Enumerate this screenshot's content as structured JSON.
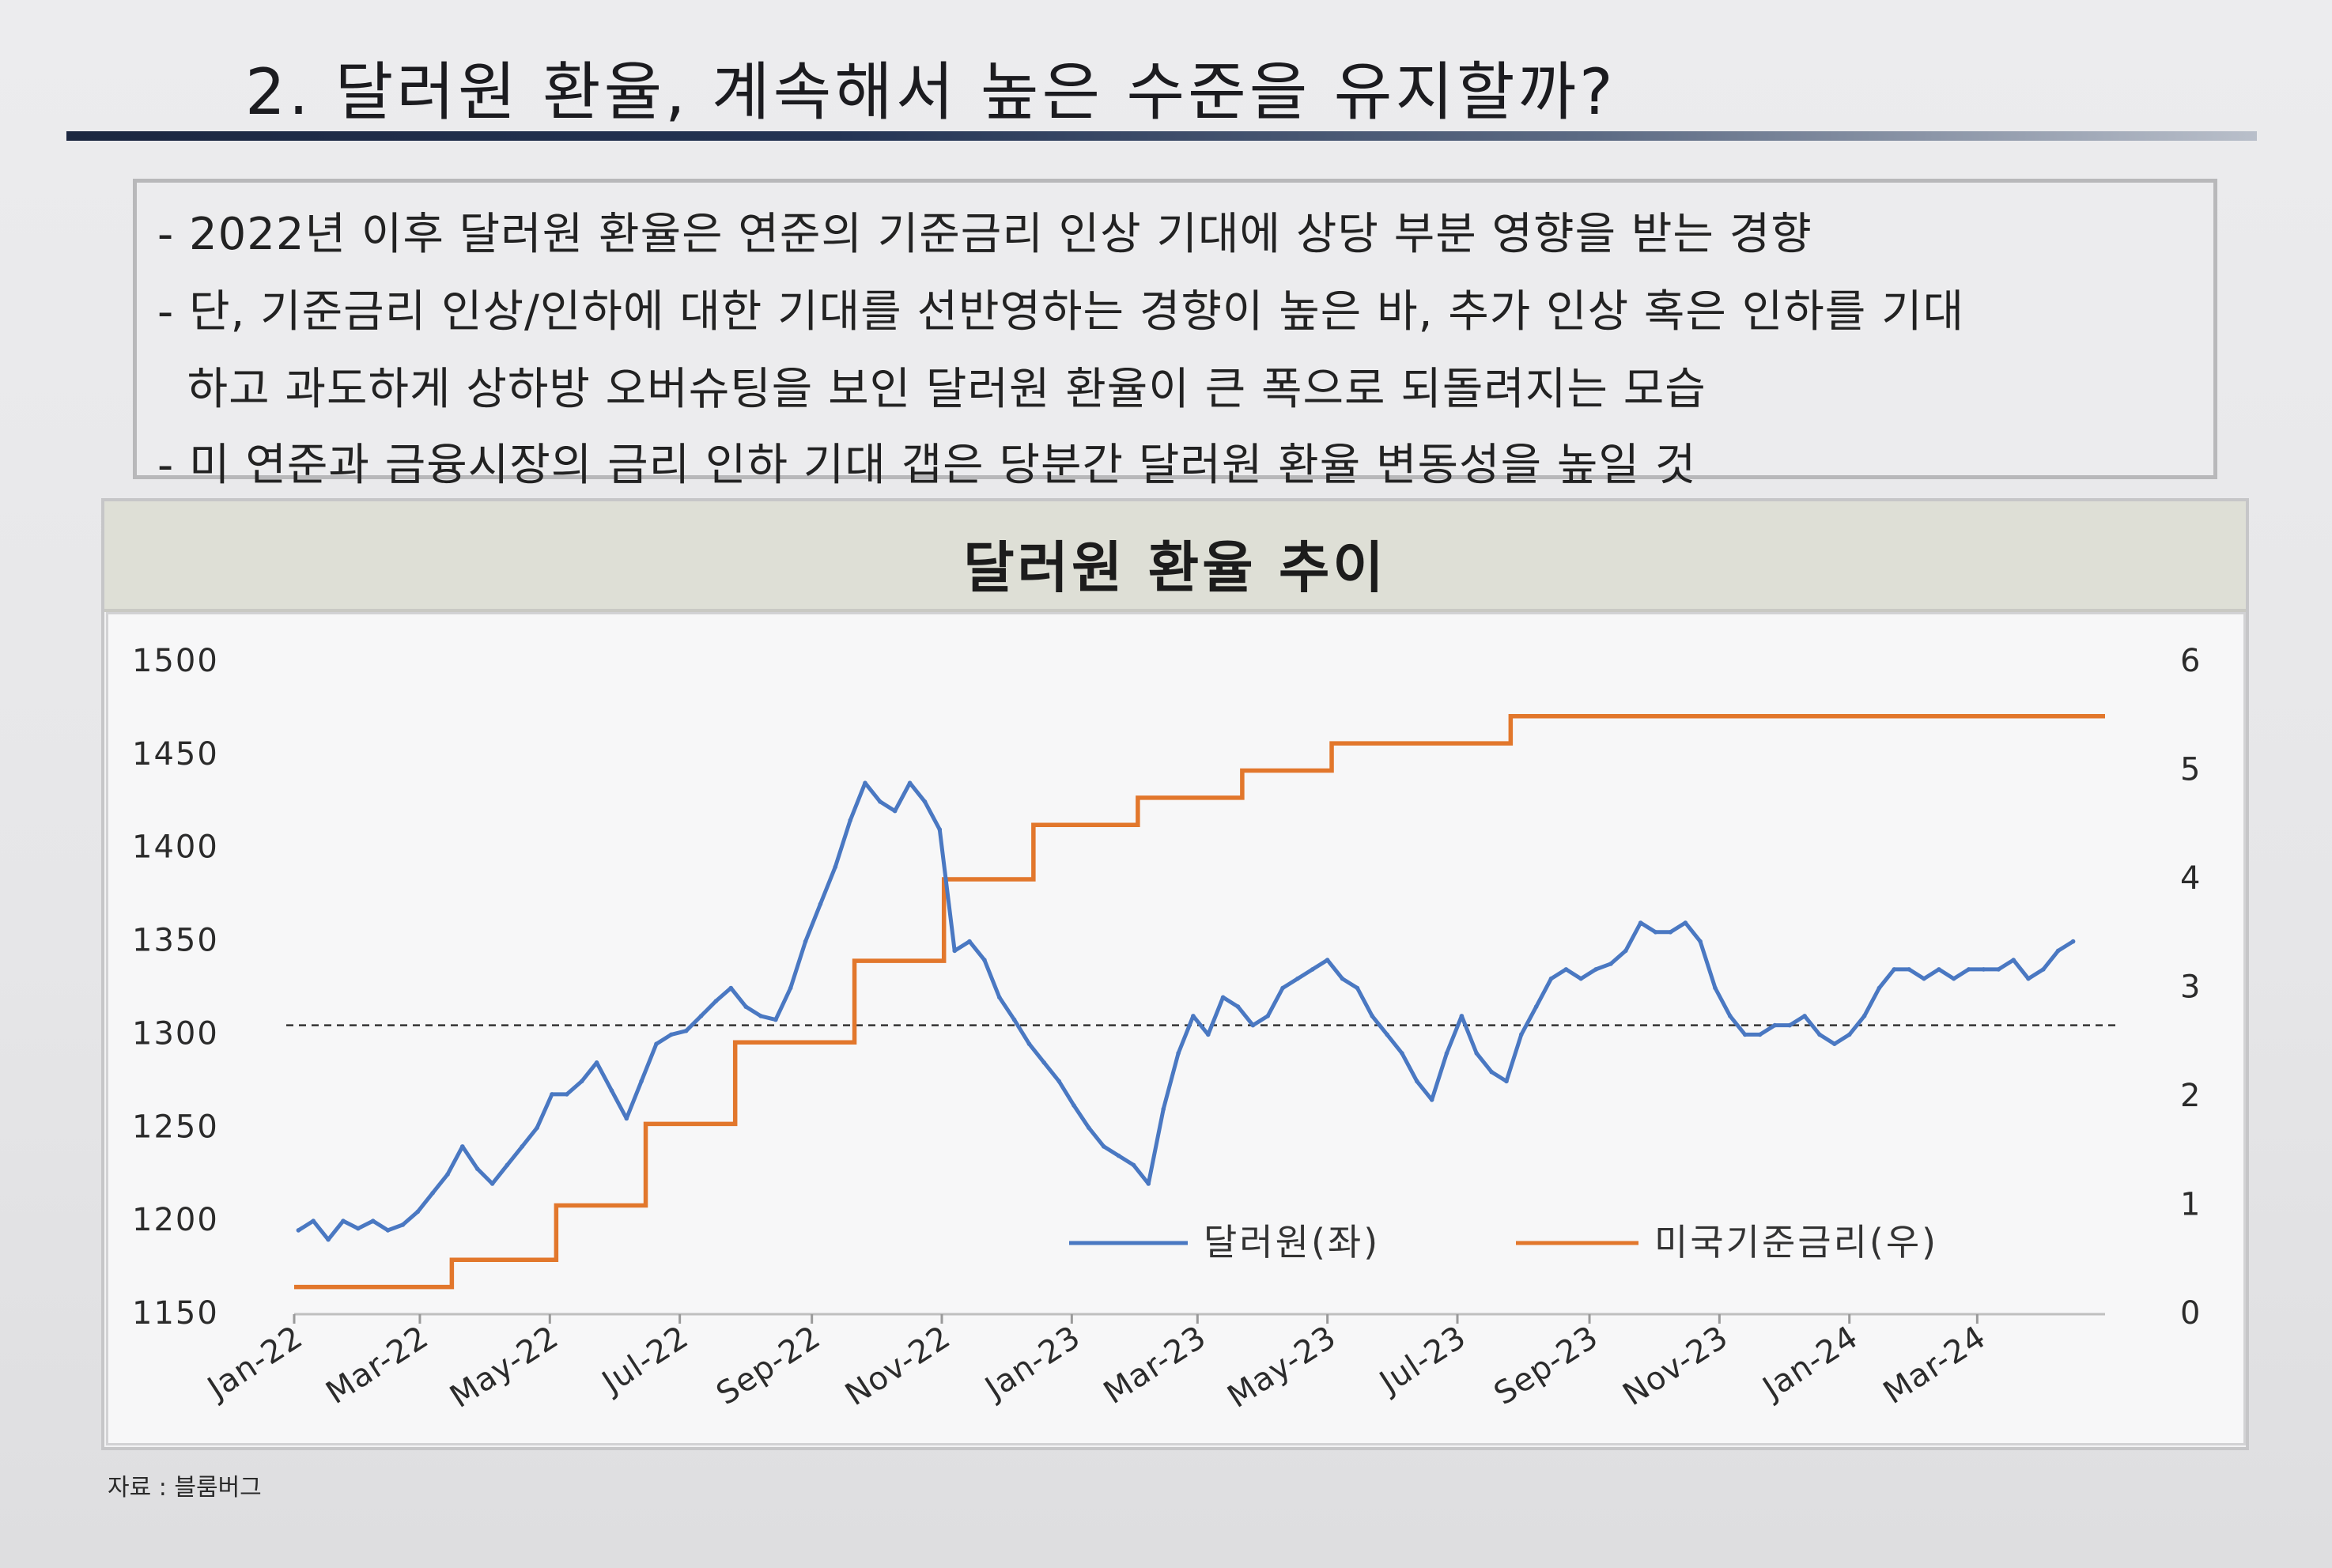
{
  "title": "2. 달러원 환율, 계속해서 높은 수준을 유지할까?",
  "bullets": [
    "- 2022년 이후 달러원 환율은 연준의 기준금리 인상 기대에 상당 부분 영향을 받는 경향",
    "- 단, 기준금리 인상/인하에 대한 기대를 선반영하는 경향이 높은 바, 추가 인상 혹은 인하를 기대",
    "  하고 과도하게 상하방 오버슈팅을 보인 달러원 환율이 큰 폭으로 되돌려지는 모습",
    "- 미 연준과 금융시장의 금리 인하 기대 갭은 당분간 달러원 환율 변동성을 높일 것"
  ],
  "source": "자료 : 블룸버그",
  "colors": {
    "usdkrw": "#4a78c2",
    "fed_rate": "#e2772c",
    "reference_line": "#333333",
    "title_rule": "#1c2740"
  },
  "chart_data": {
    "type": "line",
    "title": "달러원 환율 추이",
    "x_ticks": [
      "Jan-22",
      "Mar-22",
      "May-22",
      "Jul-22",
      "Sep-22",
      "Nov-22",
      "Jan-23",
      "Mar-23",
      "May-23",
      "Jul-23",
      "Sep-23",
      "Nov-23",
      "Jan-24",
      "Mar-24"
    ],
    "x_range": [
      "2022-01-01",
      "2024-04-30"
    ],
    "y_left": {
      "min": 1150,
      "max": 1500,
      "ticks": [
        1150,
        1200,
        1250,
        1300,
        1350,
        1400,
        1450,
        1500
      ]
    },
    "y_right": {
      "min": 0,
      "max": 6,
      "ticks": [
        0,
        1,
        2,
        3,
        4,
        5,
        6
      ]
    },
    "reference_line": {
      "axis": "left",
      "value": 1305,
      "style": "dashed"
    },
    "legend": {
      "position": "bottom-right",
      "orientation": "horizontal"
    },
    "series": [
      {
        "name": "달러원(좌)",
        "axis": "left",
        "x": [
          "2022-01-03",
          "2022-01-10",
          "2022-01-17",
          "2022-01-24",
          "2022-01-31",
          "2022-02-07",
          "2022-02-14",
          "2022-02-21",
          "2022-02-28",
          "2022-03-07",
          "2022-03-14",
          "2022-03-21",
          "2022-03-28",
          "2022-04-04",
          "2022-04-11",
          "2022-04-18",
          "2022-04-25",
          "2022-05-02",
          "2022-05-09",
          "2022-05-16",
          "2022-05-23",
          "2022-05-30",
          "2022-06-06",
          "2022-06-13",
          "2022-06-20",
          "2022-06-27",
          "2022-07-04",
          "2022-07-11",
          "2022-07-18",
          "2022-07-25",
          "2022-08-01",
          "2022-08-08",
          "2022-08-15",
          "2022-08-22",
          "2022-08-29",
          "2022-09-05",
          "2022-09-12",
          "2022-09-19",
          "2022-09-26",
          "2022-10-03",
          "2022-10-10",
          "2022-10-17",
          "2022-10-24",
          "2022-10-31",
          "2022-11-07",
          "2022-11-14",
          "2022-11-21",
          "2022-11-28",
          "2022-12-05",
          "2022-12-12",
          "2022-12-19",
          "2022-12-26",
          "2023-01-02",
          "2023-01-09",
          "2023-01-16",
          "2023-01-23",
          "2023-01-30",
          "2023-02-06",
          "2023-02-13",
          "2023-02-20",
          "2023-02-27",
          "2023-03-06",
          "2023-03-13",
          "2023-03-20",
          "2023-03-27",
          "2023-04-03",
          "2023-04-10",
          "2023-04-17",
          "2023-04-24",
          "2023-05-01",
          "2023-05-08",
          "2023-05-15",
          "2023-05-22",
          "2023-05-29",
          "2023-06-05",
          "2023-06-12",
          "2023-06-19",
          "2023-06-26",
          "2023-07-03",
          "2023-07-10",
          "2023-07-17",
          "2023-07-24",
          "2023-07-31",
          "2023-08-07",
          "2023-08-14",
          "2023-08-21",
          "2023-08-28",
          "2023-09-04",
          "2023-09-11",
          "2023-09-18",
          "2023-09-25",
          "2023-10-02",
          "2023-10-09",
          "2023-10-16",
          "2023-10-23",
          "2023-10-30",
          "2023-11-06",
          "2023-11-13",
          "2023-11-20",
          "2023-11-27",
          "2023-12-04",
          "2023-12-11",
          "2023-12-18",
          "2023-12-25",
          "2024-01-01",
          "2024-01-08",
          "2024-01-15",
          "2024-01-22",
          "2024-01-29",
          "2024-02-05",
          "2024-02-12",
          "2024-02-19",
          "2024-02-26",
          "2024-03-04",
          "2024-03-11",
          "2024-03-18",
          "2024-03-25",
          "2024-04-01",
          "2024-04-08",
          "2024-04-15"
        ],
        "values": [
          1195,
          1200,
          1190,
          1200,
          1196,
          1200,
          1195,
          1198,
          1205,
          1215,
          1225,
          1240,
          1228,
          1220,
          1230,
          1240,
          1250,
          1268,
          1268,
          1275,
          1285,
          1270,
          1255,
          1275,
          1295,
          1300,
          1302,
          1310,
          1318,
          1325,
          1315,
          1310,
          1308,
          1325,
          1350,
          1370,
          1390,
          1415,
          1435,
          1425,
          1420,
          1435,
          1425,
          1410,
          1345,
          1350,
          1340,
          1320,
          1308,
          1295,
          1285,
          1275,
          1262,
          1250,
          1240,
          1235,
          1230,
          1220,
          1260,
          1290,
          1310,
          1300,
          1320,
          1315,
          1305,
          1310,
          1325,
          1330,
          1335,
          1340,
          1330,
          1325,
          1310,
          1300,
          1290,
          1275,
          1265,
          1290,
          1310,
          1290,
          1280,
          1275,
          1300,
          1315,
          1330,
          1335,
          1330,
          1335,
          1338,
          1345,
          1360,
          1355,
          1355,
          1360,
          1350,
          1325,
          1310,
          1300,
          1300,
          1305,
          1305,
          1310,
          1300,
          1295,
          1300,
          1310,
          1325,
          1335,
          1335,
          1330,
          1335,
          1330,
          1335,
          1335,
          1335,
          1340,
          1330,
          1335,
          1345,
          1350
        ]
      },
      {
        "name": "미국기준금리(우)",
        "axis": "right",
        "type": "step",
        "x": [
          "2022-01-01",
          "2022-03-16",
          "2022-05-04",
          "2022-06-15",
          "2022-07-27",
          "2022-09-21",
          "2022-11-02",
          "2022-12-14",
          "2023-02-01",
          "2023-03-22",
          "2023-05-03",
          "2023-07-26",
          "2024-04-30"
        ],
        "values": [
          0.25,
          0.5,
          1.0,
          1.75,
          2.5,
          3.25,
          4.0,
          4.5,
          4.75,
          5.0,
          5.25,
          5.5,
          5.5
        ]
      }
    ]
  }
}
